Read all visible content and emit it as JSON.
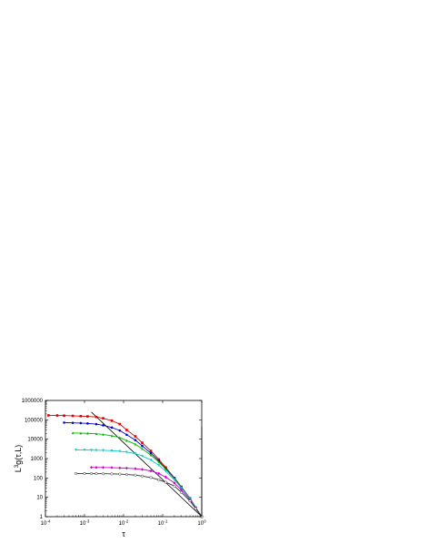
{
  "chart_data": {
    "type": "scatter",
    "title": "",
    "xlabel": "τ",
    "ylabel": "L³g(τ,L)",
    "ylabel_main": "L",
    "ylabel_sup": "3",
    "ylabel_rest": "g(τ,L)",
    "xscale": "log",
    "yscale": "log",
    "xlim": [
      0.0001,
      1
    ],
    "ylim": [
      1,
      1000000
    ],
    "x_ticks": [
      {
        "value": 0.0001,
        "base": "10",
        "exp": "-4"
      },
      {
        "value": 0.001,
        "base": "10",
        "exp": "-3"
      },
      {
        "value": 0.01,
        "base": "10",
        "exp": "-2"
      },
      {
        "value": 0.1,
        "base": "10",
        "exp": "-1"
      },
      {
        "value": 1,
        "base": "10",
        "exp": "0"
      }
    ],
    "y_ticks": [
      {
        "value": 1,
        "label": "1"
      },
      {
        "value": 10,
        "label": "10"
      },
      {
        "value": 100,
        "label": "100"
      },
      {
        "value": 1000,
        "label": "1000"
      },
      {
        "value": 10000,
        "label": "10000"
      },
      {
        "value": 100000,
        "label": "100000"
      },
      {
        "value": 1000000,
        "label": "1000000"
      }
    ],
    "grid": false,
    "legend": "none",
    "series": [
      {
        "color": "#dd0000",
        "marker": "filled-square",
        "points": [
          [
            0.00012,
            170000
          ],
          [
            0.0002,
            168000
          ],
          [
            0.0003,
            165000
          ],
          [
            0.0005,
            160000
          ],
          [
            0.0008,
            155000
          ],
          [
            0.0012,
            150000
          ],
          [
            0.002,
            140000
          ],
          [
            0.003,
            120000
          ],
          [
            0.005,
            90000
          ],
          [
            0.008,
            60000
          ],
          [
            0.012,
            30000
          ],
          [
            0.02,
            14000
          ],
          [
            0.03,
            6500
          ],
          [
            0.05,
            2500
          ],
          [
            0.08,
            900
          ],
          [
            0.12,
            350
          ],
          [
            0.2,
            100
          ],
          [
            0.3,
            35
          ],
          [
            0.5,
            9
          ],
          [
            0.7,
            3
          ],
          [
            1,
            1
          ]
        ]
      },
      {
        "color": "#0000cc",
        "marker": "filled-circle",
        "points": [
          [
            0.0003,
            72000
          ],
          [
            0.0005,
            70000
          ],
          [
            0.0008,
            68000
          ],
          [
            0.0012,
            65000
          ],
          [
            0.002,
            60000
          ],
          [
            0.003,
            52000
          ],
          [
            0.005,
            40000
          ],
          [
            0.008,
            28000
          ],
          [
            0.012,
            17000
          ],
          [
            0.02,
            9000
          ],
          [
            0.03,
            4500
          ],
          [
            0.05,
            1900
          ],
          [
            0.08,
            750
          ],
          [
            0.12,
            300
          ],
          [
            0.2,
            95
          ],
          [
            0.3,
            33
          ],
          [
            0.5,
            9
          ],
          [
            0.7,
            3
          ],
          [
            1,
            1
          ]
        ]
      },
      {
        "color": "#00bb00",
        "marker": "filled-triangle",
        "points": [
          [
            0.0005,
            21000
          ],
          [
            0.0008,
            20500
          ],
          [
            0.0012,
            20000
          ],
          [
            0.002,
            19000
          ],
          [
            0.003,
            17500
          ],
          [
            0.005,
            15000
          ],
          [
            0.008,
            12000
          ],
          [
            0.012,
            8500
          ],
          [
            0.02,
            5500
          ],
          [
            0.03,
            3200
          ],
          [
            0.05,
            1500
          ],
          [
            0.08,
            650
          ],
          [
            0.12,
            280
          ],
          [
            0.2,
            90
          ],
          [
            0.3,
            32
          ],
          [
            0.5,
            9
          ],
          [
            0.7,
            3
          ],
          [
            1,
            1
          ]
        ]
      },
      {
        "color": "#00cccc",
        "marker": "filled-triangle-down",
        "points": [
          [
            0.0006,
            2800
          ],
          [
            0.001,
            2780
          ],
          [
            0.0015,
            2750
          ],
          [
            0.002,
            2700
          ],
          [
            0.003,
            2650
          ],
          [
            0.005,
            2550
          ],
          [
            0.008,
            2400
          ],
          [
            0.012,
            2150
          ],
          [
            0.02,
            1800
          ],
          [
            0.03,
            1350
          ],
          [
            0.05,
            850
          ],
          [
            0.08,
            450
          ],
          [
            0.12,
            220
          ],
          [
            0.2,
            80
          ],
          [
            0.3,
            30
          ],
          [
            0.5,
            8.5
          ],
          [
            0.7,
            3
          ],
          [
            1,
            1
          ]
        ]
      },
      {
        "color": "#cc00cc",
        "marker": "filled-diamond",
        "points": [
          [
            0.0015,
            350
          ],
          [
            0.002,
            348
          ],
          [
            0.003,
            345
          ],
          [
            0.005,
            340
          ],
          [
            0.008,
            330
          ],
          [
            0.012,
            320
          ],
          [
            0.02,
            300
          ],
          [
            0.03,
            275
          ],
          [
            0.05,
            230
          ],
          [
            0.08,
            170
          ],
          [
            0.12,
            110
          ],
          [
            0.2,
            55
          ],
          [
            0.3,
            24
          ],
          [
            0.5,
            7.5
          ],
          [
            0.7,
            2.8
          ],
          [
            1,
            1
          ]
        ]
      },
      {
        "color": "#333333",
        "marker": "open-circle",
        "points": [
          [
            0.0006,
            170
          ],
          [
            0.001,
            169
          ],
          [
            0.0015,
            168
          ],
          [
            0.002,
            167
          ],
          [
            0.003,
            165
          ],
          [
            0.005,
            162
          ],
          [
            0.008,
            158
          ],
          [
            0.012,
            150
          ],
          [
            0.02,
            140
          ],
          [
            0.03,
            125
          ],
          [
            0.05,
            105
          ],
          [
            0.08,
            80
          ],
          [
            0.12,
            60
          ],
          [
            0.2,
            38
          ],
          [
            0.3,
            18
          ],
          [
            0.5,
            6.5
          ],
          [
            0.7,
            2.6
          ],
          [
            1,
            1
          ]
        ]
      }
    ],
    "reference_lines": [
      {
        "color": "#000000",
        "points": [
          [
            0.0015,
            250000
          ],
          [
            1,
            1
          ]
        ]
      },
      {
        "color": "#000000",
        "points": [
          [
            1,
            45000
          ],
          [
            1,
            1
          ]
        ]
      }
    ]
  }
}
